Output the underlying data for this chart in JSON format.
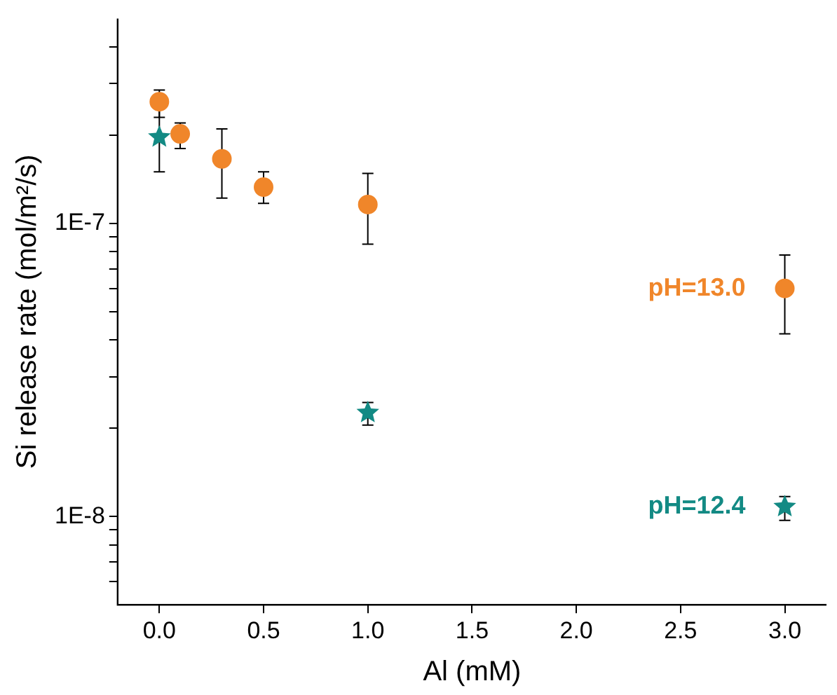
{
  "chart_data": {
    "type": "scatter",
    "xlabel": "Al (mM)",
    "ylabel": "Si release rate (mol/m²/s)",
    "log": "y",
    "grid": false,
    "legend": false,
    "xlim": [
      -0.2,
      3.2
    ],
    "xticks": [
      {
        "value": 0,
        "label": "0.0"
      },
      {
        "value": 0.5,
        "label": "0.5"
      },
      {
        "value": 1,
        "label": "1.0"
      },
      {
        "value": 1.5,
        "label": "1.5"
      },
      {
        "value": 2,
        "label": "2.0"
      },
      {
        "value": 2.5,
        "label": "2.5"
      },
      {
        "value": 3,
        "label": "3.0"
      }
    ],
    "ylim": [
      5e-09,
      5e-07
    ],
    "yticks": [
      {
        "value": 6e-09,
        "label": null
      },
      {
        "value": 7e-09,
        "label": null
      },
      {
        "value": 8e-09,
        "label": null
      },
      {
        "value": 9e-09,
        "label": null
      },
      {
        "value": 1e-08,
        "label": "1E-8"
      },
      {
        "value": 2e-08,
        "label": null
      },
      {
        "value": 3e-08,
        "label": null
      },
      {
        "value": 4e-08,
        "label": null
      },
      {
        "value": 5e-08,
        "label": null
      },
      {
        "value": 6e-08,
        "label": null
      },
      {
        "value": 7e-08,
        "label": null
      },
      {
        "value": 8e-08,
        "label": null
      },
      {
        "value": 9e-08,
        "label": null
      },
      {
        "value": 1e-07,
        "label": "1E-7"
      },
      {
        "value": 2e-07,
        "label": null
      },
      {
        "value": 3e-07,
        "label": null
      },
      {
        "value": 4e-07,
        "label": null
      }
    ],
    "series": [
      {
        "name": "pH=13.0",
        "color": "#f0862a",
        "marker": "circle",
        "x": [
          0,
          0.1,
          0.3,
          0.5,
          1,
          3
        ],
        "values": [
          2.6e-07,
          2.02e-07,
          1.66e-07,
          1.33e-07,
          1.16e-07,
          6e-08
        ],
        "errors": [
          [
            2.3e-07,
            2.85e-07
          ],
          [
            1.8e-07,
            2.2e-07
          ],
          [
            1.22e-07,
            2.1e-07
          ],
          [
            1.17e-07,
            1.5e-07
          ],
          [
            8.5e-08,
            1.48e-07
          ],
          [
            4.2e-08,
            7.8e-08
          ]
        ]
      },
      {
        "name": "pH=12.4",
        "color": "#138a84",
        "marker": "star",
        "x": [
          0,
          1,
          3
        ],
        "values": [
          1.97e-07,
          2.26e-08,
          1.08e-08
        ],
        "errors": [
          [
            1.5e-07,
            2.5e-07
          ],
          [
            2.05e-08,
            2.45e-08
          ],
          [
            9.7e-09,
            1.17e-08
          ]
        ]
      }
    ]
  }
}
